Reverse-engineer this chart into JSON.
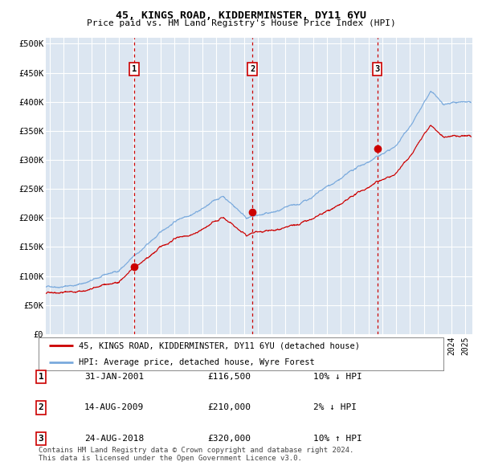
{
  "title1": "45, KINGS ROAD, KIDDERMINSTER, DY11 6YU",
  "title2": "Price paid vs. HM Land Registry's House Price Index (HPI)",
  "ylabel_vals": [
    "£0",
    "£50K",
    "£100K",
    "£150K",
    "£200K",
    "£250K",
    "£300K",
    "£350K",
    "£400K",
    "£450K",
    "£500K"
  ],
  "ytick_vals": [
    0,
    50000,
    100000,
    150000,
    200000,
    250000,
    300000,
    350000,
    400000,
    450000,
    500000
  ],
  "xlim_start": 1994.7,
  "xlim_end": 2025.5,
  "ylim": [
    0,
    510000
  ],
  "bg_color": "#dce6f1",
  "grid_color": "#ffffff",
  "red_line_color": "#cc0000",
  "blue_line_color": "#7aaadd",
  "sale_marker_color": "#cc0000",
  "vline_color": "#cc0000",
  "transactions": [
    {
      "label": "1",
      "year": 2001.08,
      "price": 116500,
      "date": "31-JAN-2001",
      "pct": "10%",
      "dir": "↓"
    },
    {
      "label": "2",
      "year": 2009.62,
      "price": 210000,
      "date": "14-AUG-2009",
      "pct": "2%",
      "dir": "↓"
    },
    {
      "label": "3",
      "year": 2018.64,
      "price": 320000,
      "date": "24-AUG-2018",
      "pct": "10%",
      "dir": "↑"
    }
  ],
  "legend_line1": "45, KINGS ROAD, KIDDERMINSTER, DY11 6YU (detached house)",
  "legend_line2": "HPI: Average price, detached house, Wyre Forest",
  "footnote": "Contains HM Land Registry data © Crown copyright and database right 2024.\nThis data is licensed under the Open Government Licence v3.0.",
  "number_box_color": "#cc0000",
  "table_rows": [
    [
      "1",
      "31-JAN-2001",
      "£116,500",
      "10% ↓ HPI"
    ],
    [
      "2",
      "14-AUG-2009",
      "£210,000",
      "2% ↓ HPI"
    ],
    [
      "3",
      "24-AUG-2018",
      "£320,000",
      "10% ↑ HPI"
    ]
  ]
}
